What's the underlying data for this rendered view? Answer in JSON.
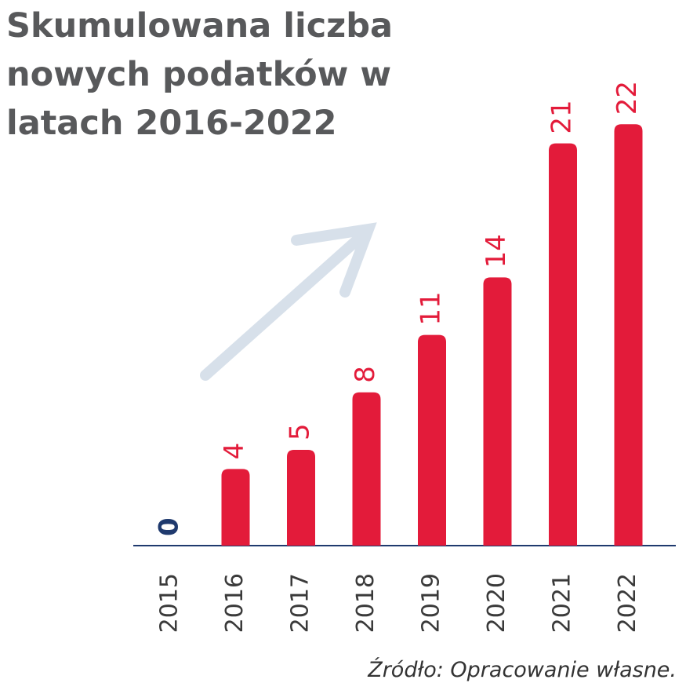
{
  "chart_data": {
    "type": "bar",
    "title": "Skumulowana liczba nowych podatków w latach 2016-2022",
    "source": "Źródło: Opracowanie własne.",
    "categories": [
      "2015",
      "2016",
      "2017",
      "2018",
      "2019",
      "2020",
      "2021",
      "2022"
    ],
    "values": [
      0,
      4,
      5,
      8,
      11,
      14,
      21,
      22
    ],
    "color": "#e31b3a",
    "baseline_color": "#1f3a6e"
  }
}
